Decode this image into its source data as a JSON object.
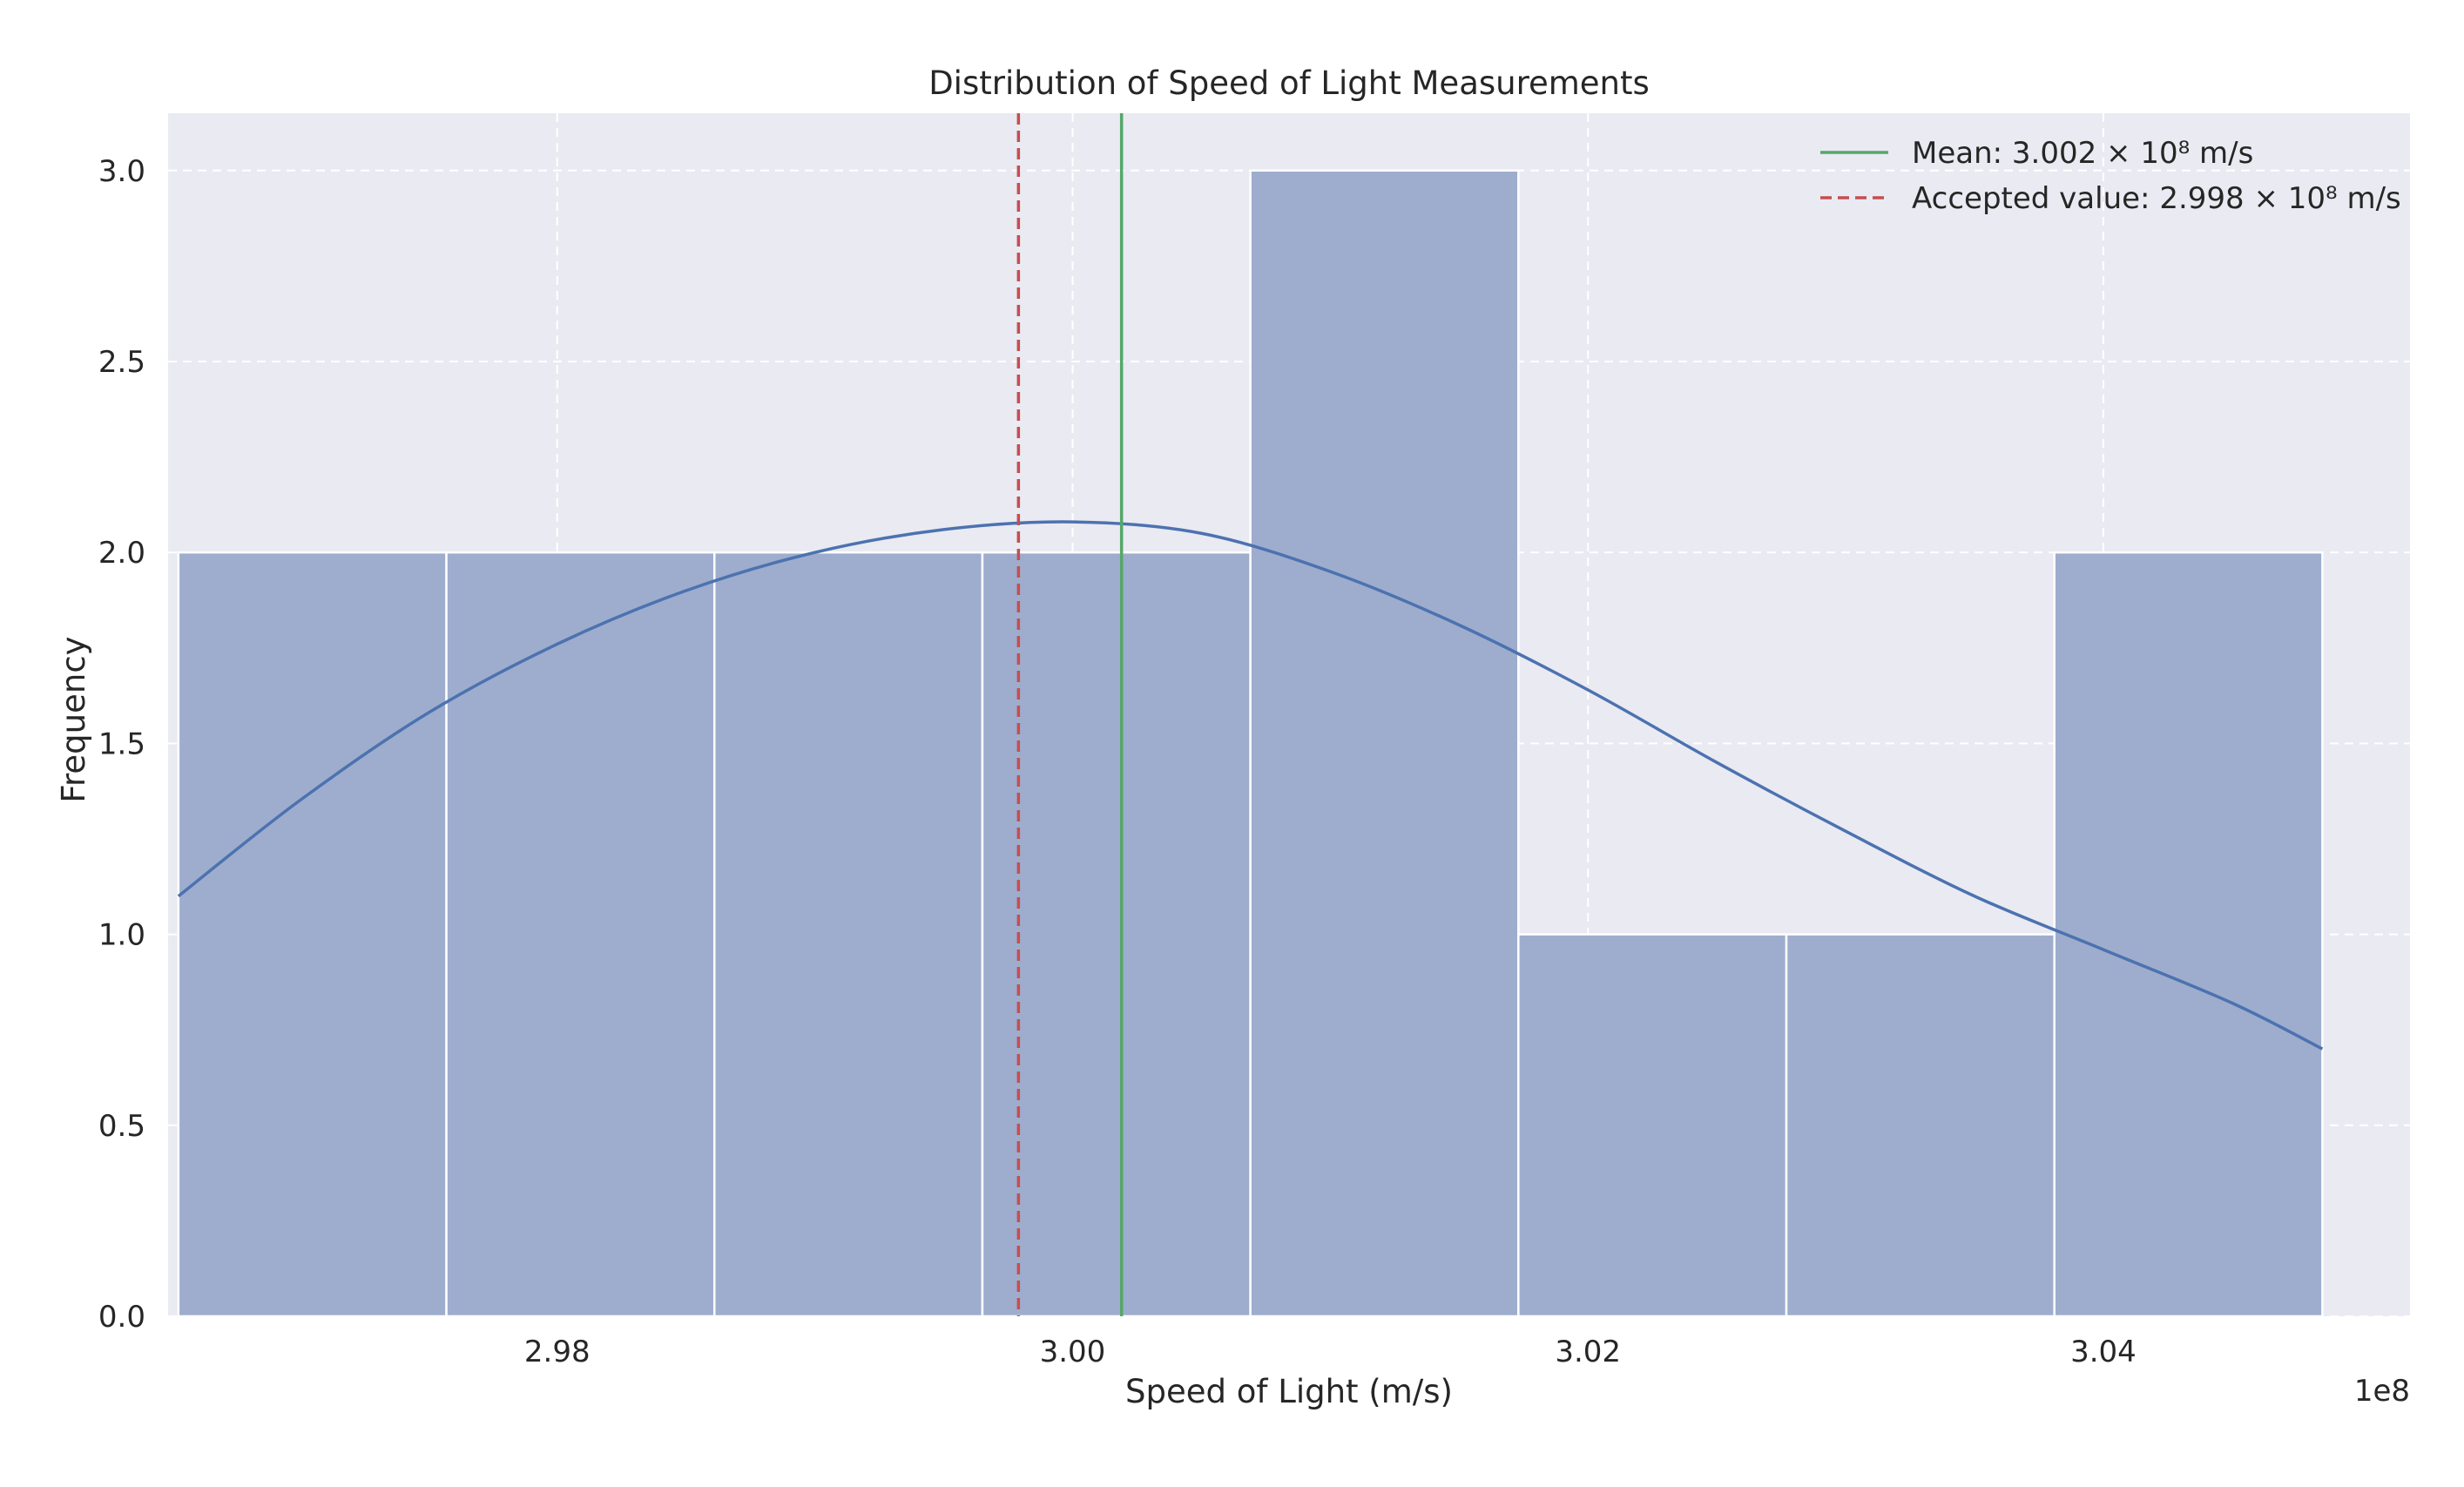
{
  "colors": {
    "plot_background": "#EAEAF2",
    "grid": "#FFFFFF",
    "bar_fill": "#9EADCD",
    "bar_edge": "#FFFFFF",
    "kde_line": "#4C72B0",
    "mean_line": "#55A868",
    "accepted_line": "#C44E52",
    "text": "#262626"
  },
  "chart_data": {
    "type": "bar",
    "subtype": "histogram",
    "title": "Distribution of Speed of Light Measurements",
    "xlabel": "Speed of Light (m/s)",
    "ylabel": "Frequency",
    "x_offset_label": "1e8",
    "x_scale": 100000000,
    "xlim": [
      2.9649,
      3.0519
    ],
    "ylim": [
      0,
      3.15
    ],
    "xticks": [
      2.98,
      3.0,
      3.02,
      3.04
    ],
    "xtick_labels": [
      "2.98",
      "3.00",
      "3.02",
      "3.04"
    ],
    "yticks": [
      0.0,
      0.5,
      1.0,
      1.5,
      2.0,
      2.5,
      3.0
    ],
    "ytick_labels": [
      "0.0",
      "0.5",
      "1.0",
      "1.5",
      "2.0",
      "2.5",
      "3.0"
    ],
    "grid": true,
    "bin_edges": [
      2.9653,
      2.9757,
      2.9861,
      2.9965,
      3.0069,
      3.0173,
      3.0277,
      3.0381,
      3.0485
    ],
    "values": [
      2,
      2,
      2,
      2,
      3,
      1,
      1,
      2
    ],
    "kde": {
      "x": [
        2.9653,
        2.97,
        2.975,
        2.98,
        2.985,
        2.99,
        2.995,
        3.0,
        3.005,
        3.01,
        3.015,
        3.02,
        3.025,
        3.03,
        3.035,
        3.04,
        3.045,
        3.0485
      ],
      "y": [
        1.1,
        1.35,
        1.58,
        1.76,
        1.9,
        2.0,
        2.06,
        2.08,
        2.05,
        1.95,
        1.81,
        1.64,
        1.45,
        1.27,
        1.1,
        0.96,
        0.82,
        0.7
      ]
    },
    "vlines": [
      {
        "name": "Mean: 3.002 × 10⁸ m/s",
        "x": 3.0019,
        "style": "solid",
        "color": "#55A868"
      },
      {
        "name": "Accepted value: 2.998 × 10⁸ m/s",
        "x": 2.9979,
        "style": "dashed",
        "color": "#C44E52"
      }
    ],
    "legend_position": "top-right"
  }
}
